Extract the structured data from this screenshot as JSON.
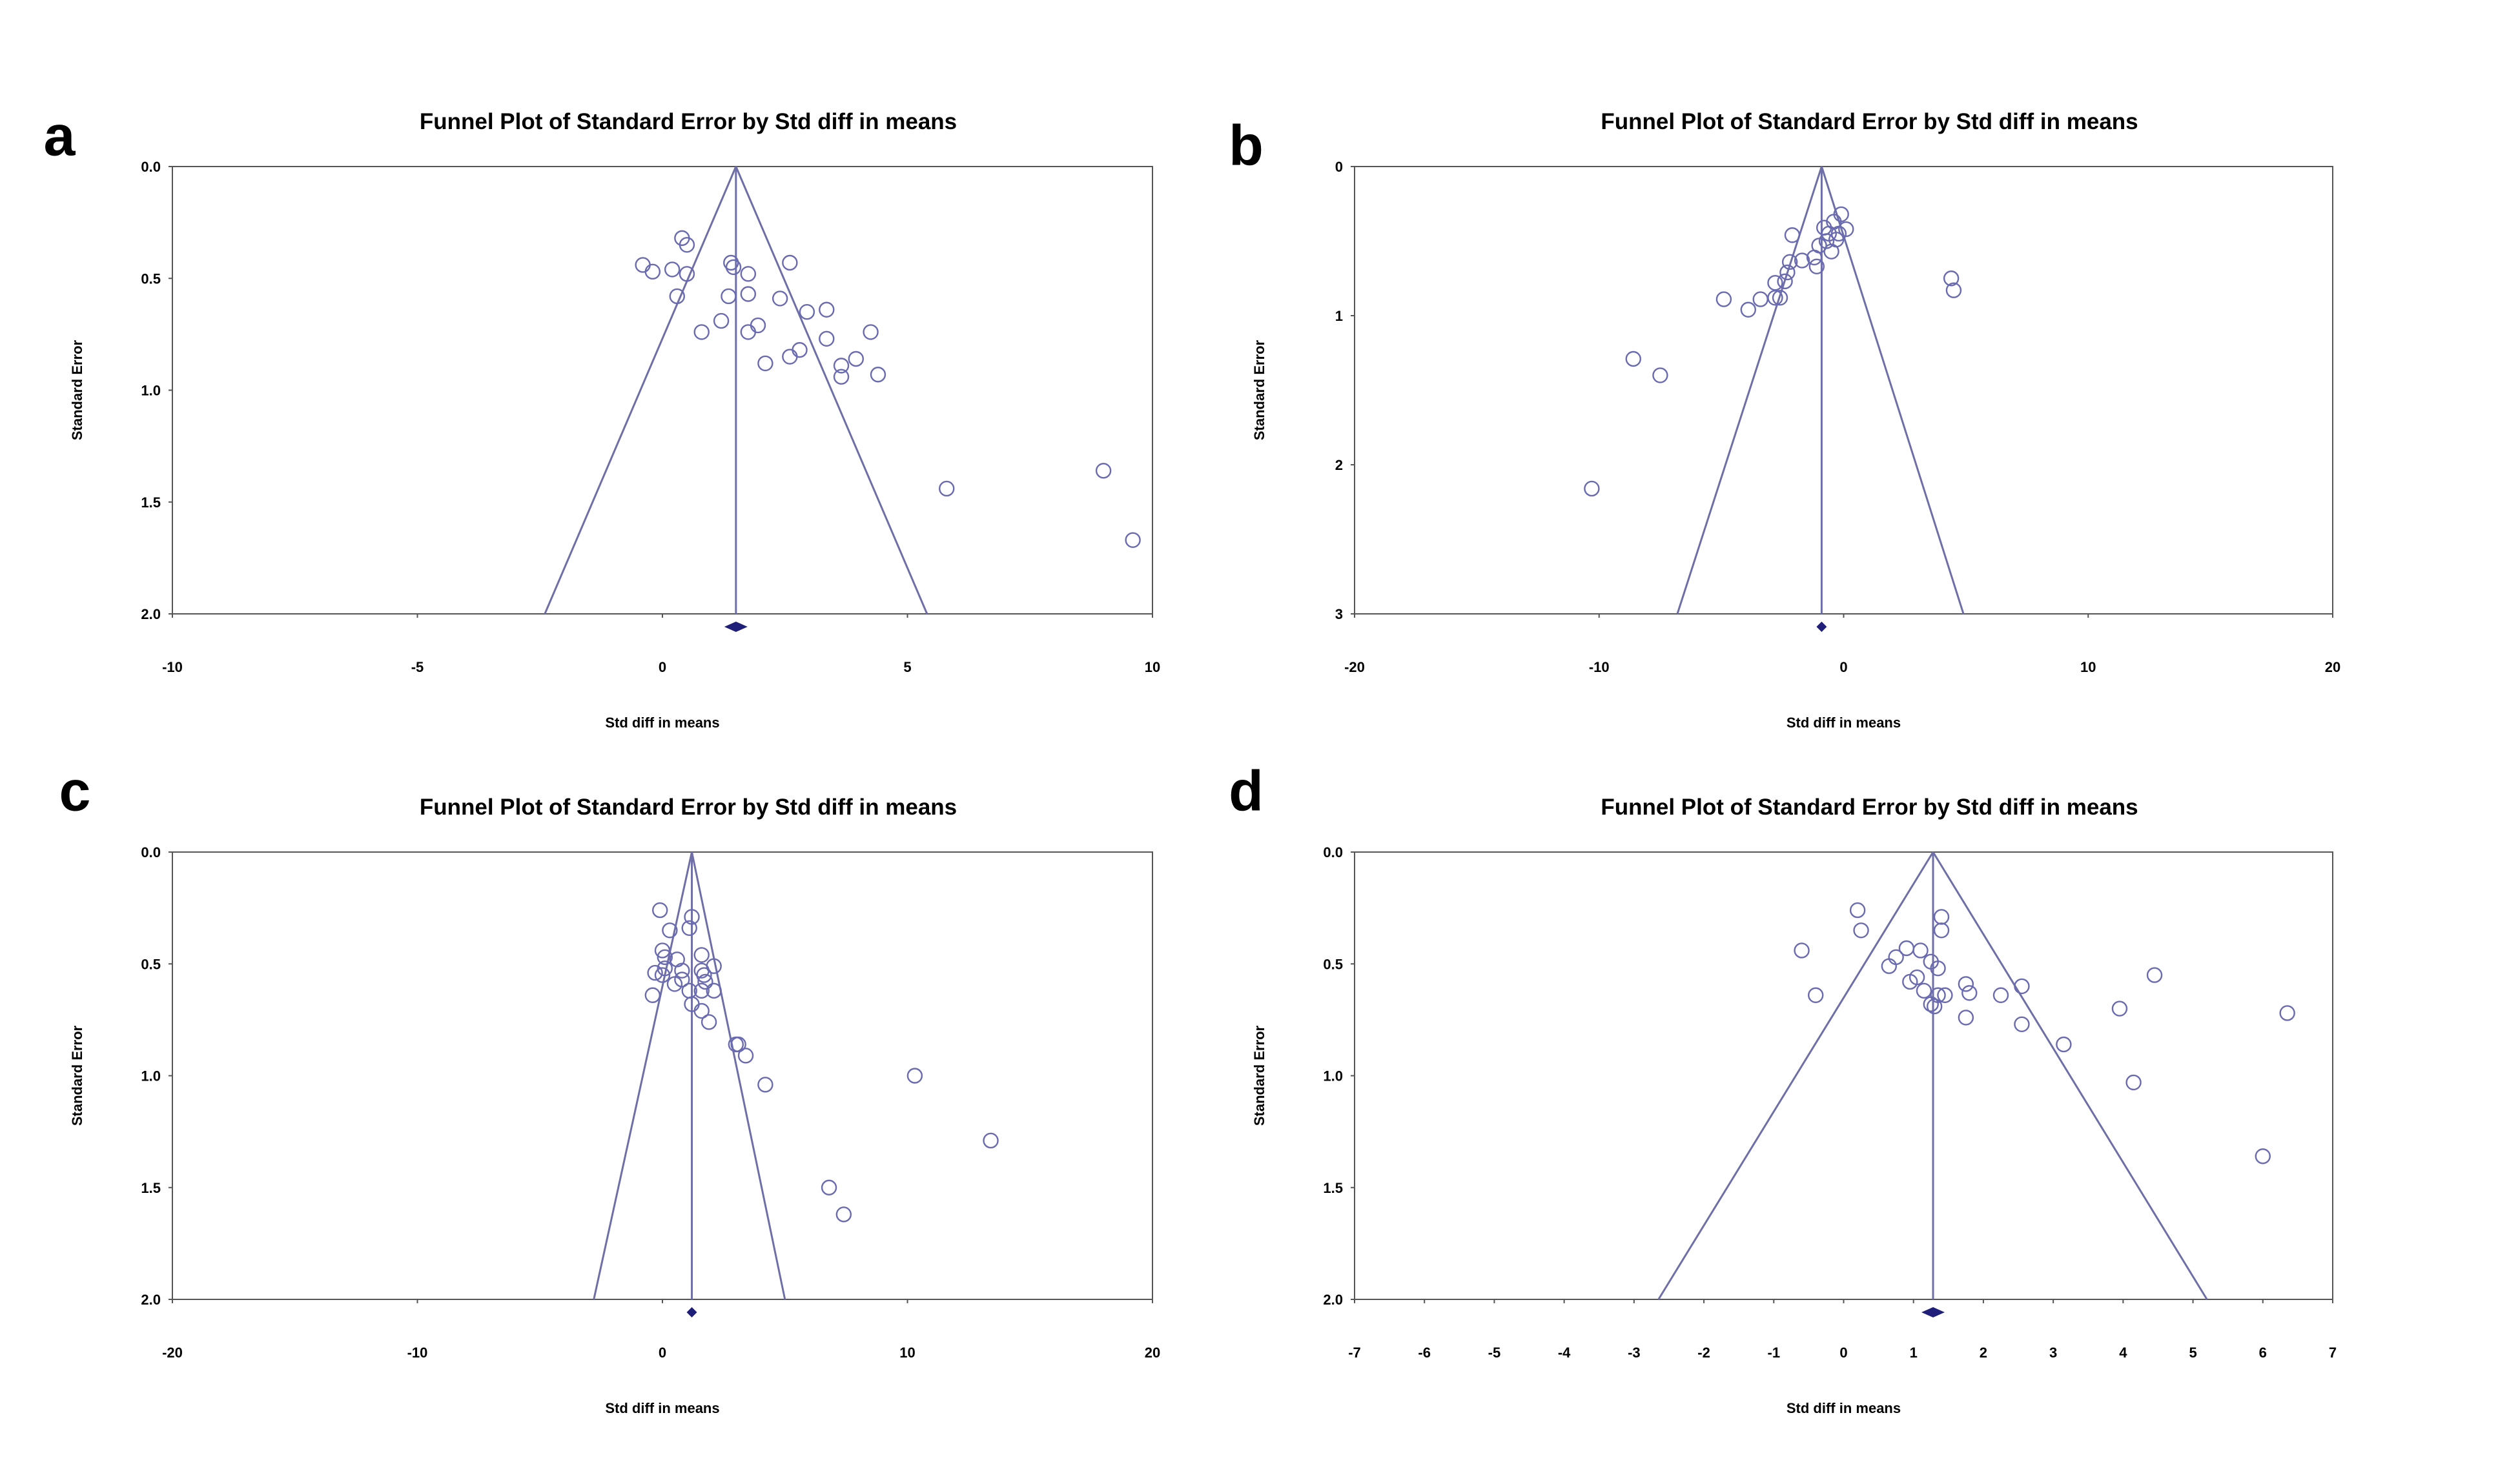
{
  "chart_data": [
    {
      "type": "scatter",
      "panel": "a",
      "title": "Funnel Plot of Standard Error by Std diff in means",
      "xlabel": "Std diff in means",
      "ylabel": "Standard Error",
      "xlim": [
        -10,
        10
      ],
      "ylim": [
        0.0,
        2.0
      ],
      "y_inverted": true,
      "xticks": [
        -10,
        -5,
        0,
        5,
        10
      ],
      "xtick_labels": [
        "-10",
        "-5",
        "0",
        "5",
        "10"
      ],
      "yticks": [
        0.0,
        0.5,
        1.0,
        1.5,
        2.0
      ],
      "ytick_labels": [
        "0.0",
        "0.5",
        "1.0",
        "1.5",
        "2.0"
      ],
      "pooled_effect": 1.5,
      "funnel_bottom_left": -2.4,
      "funnel_bottom_right": 5.4,
      "points": [
        {
          "x": -0.4,
          "y": 0.44
        },
        {
          "x": -0.2,
          "y": 0.47
        },
        {
          "x": 0.2,
          "y": 0.46
        },
        {
          "x": 0.4,
          "y": 0.32
        },
        {
          "x": 0.5,
          "y": 0.35
        },
        {
          "x": 0.5,
          "y": 0.48
        },
        {
          "x": 0.3,
          "y": 0.58
        },
        {
          "x": 0.8,
          "y": 0.74
        },
        {
          "x": 1.2,
          "y": 0.69
        },
        {
          "x": 1.35,
          "y": 0.58
        },
        {
          "x": 1.4,
          "y": 0.43
        },
        {
          "x": 1.45,
          "y": 0.45
        },
        {
          "x": 1.75,
          "y": 0.48
        },
        {
          "x": 1.75,
          "y": 0.57
        },
        {
          "x": 1.75,
          "y": 0.74
        },
        {
          "x": 1.95,
          "y": 0.71
        },
        {
          "x": 2.1,
          "y": 0.88
        },
        {
          "x": 2.4,
          "y": 0.59
        },
        {
          "x": 2.6,
          "y": 0.43
        },
        {
          "x": 2.6,
          "y": 0.85
        },
        {
          "x": 2.8,
          "y": 0.82
        },
        {
          "x": 2.95,
          "y": 0.65
        },
        {
          "x": 3.35,
          "y": 0.64
        },
        {
          "x": 3.35,
          "y": 0.77
        },
        {
          "x": 3.65,
          "y": 0.89
        },
        {
          "x": 3.65,
          "y": 0.94
        },
        {
          "x": 3.95,
          "y": 0.86
        },
        {
          "x": 4.25,
          "y": 0.74
        },
        {
          "x": 4.4,
          "y": 0.93
        },
        {
          "x": 5.8,
          "y": 1.44
        },
        {
          "x": 9.0,
          "y": 1.36
        },
        {
          "x": 9.6,
          "y": 1.67
        }
      ]
    },
    {
      "type": "scatter",
      "panel": "b",
      "title": "Funnel Plot of Standard Error by Std diff in means",
      "xlabel": "Std diff in means",
      "ylabel": "Standard Error",
      "xlim": [
        -20,
        20
      ],
      "ylim": [
        0,
        3
      ],
      "y_inverted": true,
      "xticks": [
        -20,
        -10,
        0,
        10,
        20
      ],
      "xtick_labels": [
        "-20",
        "-10",
        "0",
        "10",
        "20"
      ],
      "yticks": [
        0,
        1,
        2,
        3
      ],
      "ytick_labels": [
        "0",
        "1",
        "2",
        "3"
      ],
      "pooled_effect": -0.9,
      "funnel_bottom_left": -6.8,
      "funnel_bottom_right": 4.9,
      "points": [
        {
          "x": -10.3,
          "y": 2.16
        },
        {
          "x": -8.6,
          "y": 1.29
        },
        {
          "x": -7.5,
          "y": 1.4
        },
        {
          "x": -4.9,
          "y": 0.89
        },
        {
          "x": -3.9,
          "y": 0.96
        },
        {
          "x": -3.4,
          "y": 0.89
        },
        {
          "x": -2.8,
          "y": 0.88
        },
        {
          "x": -2.8,
          "y": 0.78
        },
        {
          "x": -2.6,
          "y": 0.88
        },
        {
          "x": -2.4,
          "y": 0.77
        },
        {
          "x": -2.3,
          "y": 0.71
        },
        {
          "x": -2.2,
          "y": 0.64
        },
        {
          "x": -2.1,
          "y": 0.46
        },
        {
          "x": -1.7,
          "y": 0.63
        },
        {
          "x": -1.2,
          "y": 0.61
        },
        {
          "x": -1.1,
          "y": 0.67
        },
        {
          "x": -1.0,
          "y": 0.53
        },
        {
          "x": -0.8,
          "y": 0.41
        },
        {
          "x": -0.7,
          "y": 0.5
        },
        {
          "x": -0.6,
          "y": 0.45
        },
        {
          "x": -0.5,
          "y": 0.57
        },
        {
          "x": -0.4,
          "y": 0.37
        },
        {
          "x": -0.3,
          "y": 0.49
        },
        {
          "x": -0.2,
          "y": 0.45
        },
        {
          "x": -0.1,
          "y": 0.32
        },
        {
          "x": 0.1,
          "y": 0.42
        },
        {
          "x": 4.4,
          "y": 0.75
        },
        {
          "x": 4.5,
          "y": 0.83
        }
      ]
    },
    {
      "type": "scatter",
      "panel": "c",
      "title": "Funnel Plot of Standard Error by Std diff in means",
      "xlabel": "Std diff in means",
      "ylabel": "Standard Error",
      "xlim": [
        -20,
        20
      ],
      "ylim": [
        0.0,
        2.0
      ],
      "y_inverted": true,
      "xticks": [
        -20,
        -10,
        0,
        10,
        20
      ],
      "xtick_labels": [
        "-20",
        "-10",
        "0",
        "10",
        "20"
      ],
      "yticks": [
        0.0,
        0.5,
        1.0,
        1.5,
        2.0
      ],
      "ytick_labels": [
        "0.0",
        "0.5",
        "1.0",
        "1.5",
        "2.0"
      ],
      "pooled_effect": 1.2,
      "funnel_bottom_left": -2.8,
      "funnel_bottom_right": 5.0,
      "points": [
        {
          "x": -0.1,
          "y": 0.26
        },
        {
          "x": 0.3,
          "y": 0.35
        },
        {
          "x": 1.2,
          "y": 0.29
        },
        {
          "x": 1.1,
          "y": 0.34
        },
        {
          "x": 0.0,
          "y": 0.44
        },
        {
          "x": 0.1,
          "y": 0.47
        },
        {
          "x": -0.3,
          "y": 0.54
        },
        {
          "x": 0.0,
          "y": 0.55
        },
        {
          "x": 0.1,
          "y": 0.52
        },
        {
          "x": 0.6,
          "y": 0.48
        },
        {
          "x": 0.8,
          "y": 0.53
        },
        {
          "x": 0.8,
          "y": 0.57
        },
        {
          "x": 0.5,
          "y": 0.59
        },
        {
          "x": -0.4,
          "y": 0.64
        },
        {
          "x": 1.1,
          "y": 0.62
        },
        {
          "x": 1.2,
          "y": 0.68
        },
        {
          "x": 1.6,
          "y": 0.46
        },
        {
          "x": 1.6,
          "y": 0.53
        },
        {
          "x": 1.7,
          "y": 0.55
        },
        {
          "x": 1.75,
          "y": 0.58
        },
        {
          "x": 1.6,
          "y": 0.62
        },
        {
          "x": 2.1,
          "y": 0.51
        },
        {
          "x": 2.1,
          "y": 0.62
        },
        {
          "x": 1.6,
          "y": 0.71
        },
        {
          "x": 1.9,
          "y": 0.76
        },
        {
          "x": 3.0,
          "y": 0.86
        },
        {
          "x": 3.1,
          "y": 0.86
        },
        {
          "x": 3.4,
          "y": 0.91
        },
        {
          "x": 4.2,
          "y": 1.04
        },
        {
          "x": 10.3,
          "y": 1.0
        },
        {
          "x": 13.4,
          "y": 1.29
        },
        {
          "x": 6.8,
          "y": 1.5
        },
        {
          "x": 7.4,
          "y": 1.62
        }
      ]
    },
    {
      "type": "scatter",
      "panel": "d",
      "title": "Funnel Plot of Standard Error by Std diff in means",
      "xlabel": "Std diff in means",
      "ylabel": "Standard Error",
      "xlim": [
        -7,
        7
      ],
      "ylim": [
        0.0,
        2.0
      ],
      "y_inverted": true,
      "xticks": [
        -7,
        -6,
        -5,
        -4,
        -3,
        -2,
        -1,
        0,
        1,
        2,
        3,
        4,
        5,
        6,
        7
      ],
      "xtick_labels": [
        "-7",
        "-6",
        "-5",
        "-4",
        "-3",
        "-2",
        "-1",
        "0",
        "1",
        "2",
        "3",
        "4",
        "5",
        "6",
        "7"
      ],
      "yticks": [
        0.0,
        0.5,
        1.0,
        1.5,
        2.0
      ],
      "ytick_labels": [
        "0.0",
        "0.5",
        "1.0",
        "1.5",
        "2.0"
      ],
      "pooled_effect": 1.28,
      "funnel_bottom_left": -2.65,
      "funnel_bottom_right": 5.2,
      "points": [
        {
          "x": 0.2,
          "y": 0.26
        },
        {
          "x": 0.25,
          "y": 0.35
        },
        {
          "x": 1.4,
          "y": 0.29
        },
        {
          "x": 1.4,
          "y": 0.35
        },
        {
          "x": -0.6,
          "y": 0.44
        },
        {
          "x": -0.4,
          "y": 0.64
        },
        {
          "x": 0.65,
          "y": 0.51
        },
        {
          "x": 0.75,
          "y": 0.47
        },
        {
          "x": 0.9,
          "y": 0.43
        },
        {
          "x": 1.1,
          "y": 0.44
        },
        {
          "x": 0.95,
          "y": 0.58
        },
        {
          "x": 1.05,
          "y": 0.56
        },
        {
          "x": 1.15,
          "y": 0.62
        },
        {
          "x": 1.25,
          "y": 0.68
        },
        {
          "x": 1.3,
          "y": 0.69
        },
        {
          "x": 1.25,
          "y": 0.49
        },
        {
          "x": 1.35,
          "y": 0.52
        },
        {
          "x": 1.35,
          "y": 0.64
        },
        {
          "x": 1.45,
          "y": 0.64
        },
        {
          "x": 1.75,
          "y": 0.59
        },
        {
          "x": 1.8,
          "y": 0.63
        },
        {
          "x": 1.75,
          "y": 0.74
        },
        {
          "x": 2.25,
          "y": 0.64
        },
        {
          "x": 2.55,
          "y": 0.6
        },
        {
          "x": 2.55,
          "y": 0.77
        },
        {
          "x": 3.15,
          "y": 0.86
        },
        {
          "x": 3.95,
          "y": 0.7
        },
        {
          "x": 4.45,
          "y": 0.55
        },
        {
          "x": 6.35,
          "y": 0.72
        },
        {
          "x": 4.15,
          "y": 1.03
        },
        {
          "x": 6.0,
          "y": 1.36
        }
      ]
    }
  ]
}
